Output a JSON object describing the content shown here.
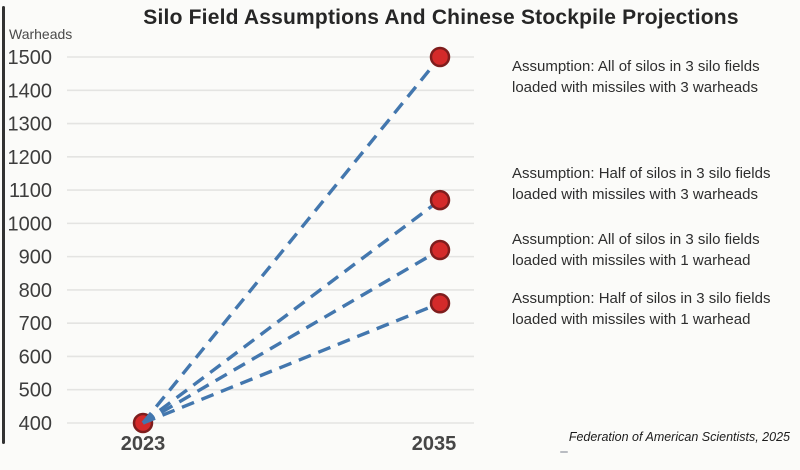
{
  "chart_data": {
    "type": "line",
    "title": "Silo Field Assumptions And Chinese Stockpile Projections",
    "ylabel": "Warheads",
    "x": [
      "2023",
      "2035"
    ],
    "ylim": [
      400,
      1500
    ],
    "ytick_step": 100,
    "grid": true,
    "legend_position": "right-annotations",
    "line_style": "dashed",
    "line_color": "#4377ae",
    "grid_color": "#e4e4e2",
    "marker_color": "#d42a2a",
    "marker_edge_color": "#7e1d1d",
    "series": [
      {
        "name": "All of silos in 3 silo fields loaded with missiles with 3 warheads",
        "values": [
          400,
          1500
        ]
      },
      {
        "name": "Half of silos in 3 silo fields loaded with missiles with 3 warheads",
        "values": [
          400,
          1070
        ]
      },
      {
        "name": "All of silos in 3 silo fields loaded with missiles with 1 warhead",
        "values": [
          400,
          920
        ]
      },
      {
        "name": "Half of silos in 3 silo fields loaded with missiles with 1 warhead",
        "values": [
          400,
          760
        ]
      }
    ]
  },
  "annotations": [
    {
      "line1": "Assumption: All of silos in 3 silo fields",
      "line2": "loaded with missiles with 3 warheads"
    },
    {
      "line1": "Assumption: Half of silos in 3 silo fields",
      "line2": "loaded with missiles with 3 warheads"
    },
    {
      "line1": "Assumption: All of silos in 3 silo fields",
      "line2": "loaded with missiles with 1 warhead"
    },
    {
      "line1": "Assumption: Half of silos in 3 silo fields",
      "line2": "loaded with missiles with 1 warhead"
    }
  ],
  "footer": {
    "credit": "Federation of American Scientists, 2025"
  }
}
